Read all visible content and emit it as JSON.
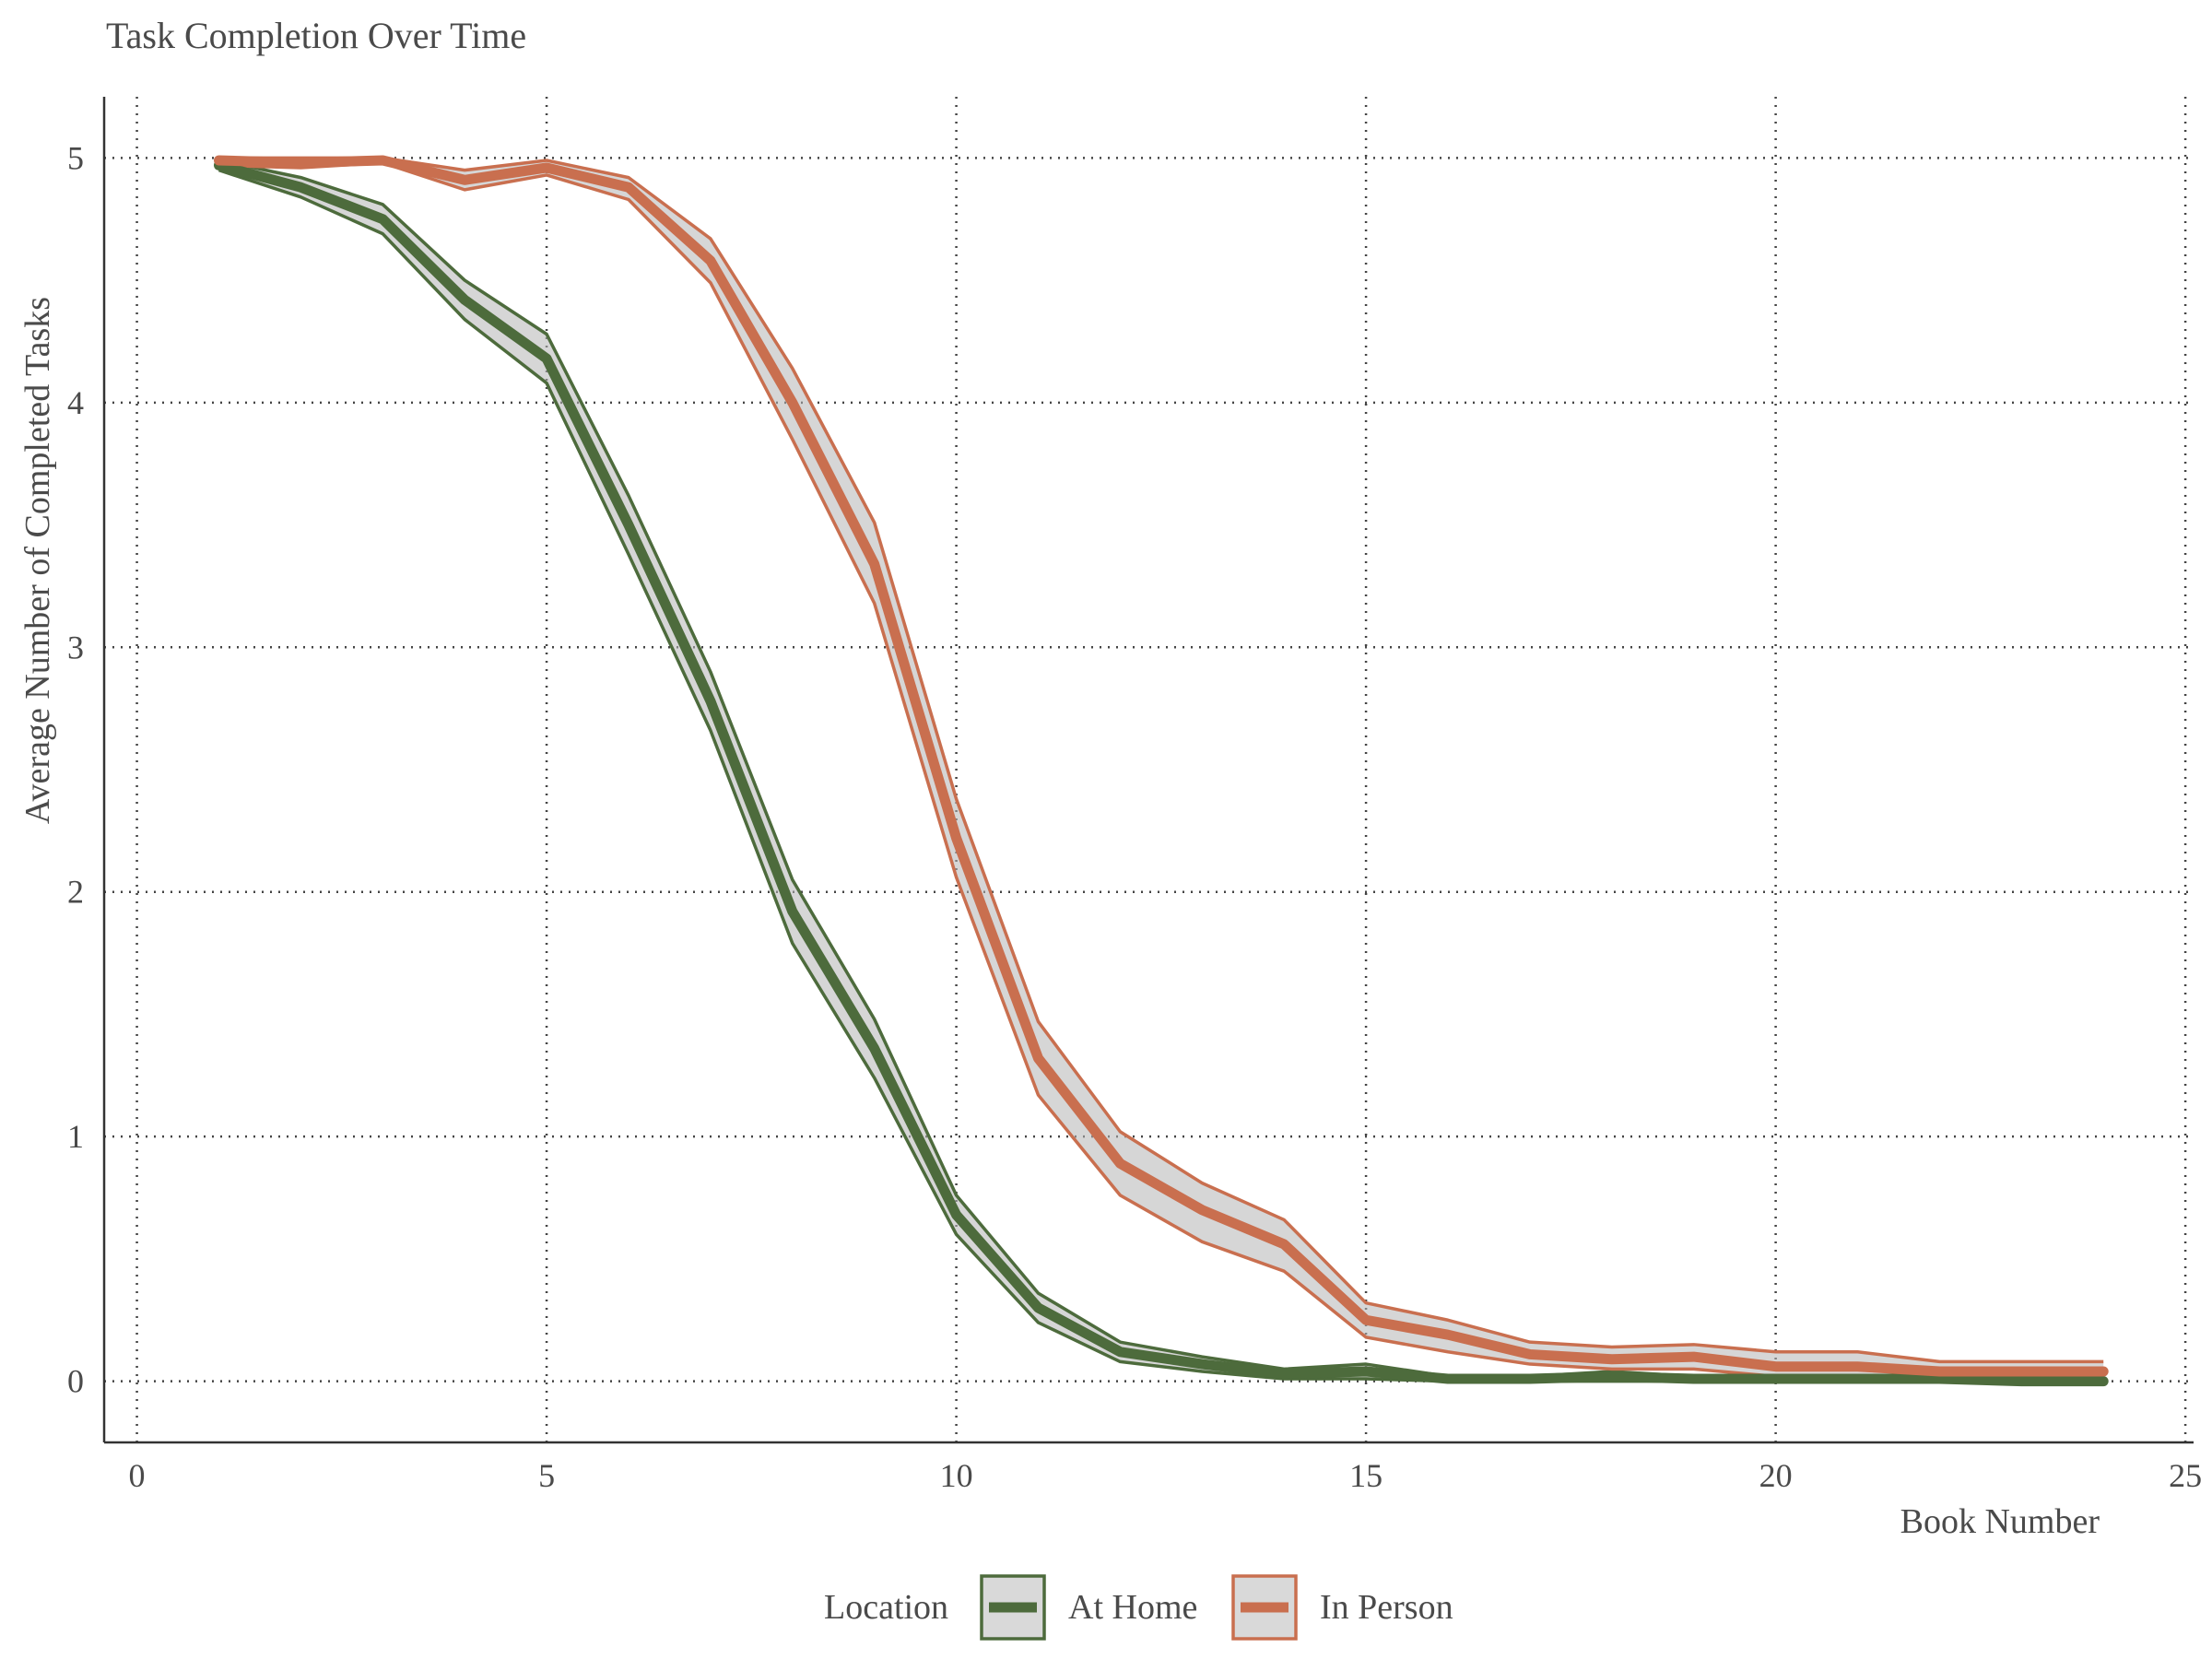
{
  "chart_data": {
    "type": "line",
    "title": "Task Completion Over Time",
    "xlabel": "Book Number",
    "ylabel": "Average Number of Completed Tasks",
    "xlim": [
      -0.4,
      25.1
    ],
    "ylim": [
      -0.25,
      5.25
    ],
    "xticks": [
      0,
      5,
      10,
      15,
      20,
      25
    ],
    "yticks": [
      0,
      1,
      2,
      3,
      4,
      5
    ],
    "grid": true,
    "legend": {
      "title": "Location",
      "position": "bottom"
    },
    "x": [
      1,
      2,
      3,
      4,
      5,
      6,
      7,
      8,
      9,
      10,
      11,
      12,
      13,
      14,
      15,
      16,
      17,
      18,
      19,
      20,
      21,
      22,
      23,
      24
    ],
    "series": [
      {
        "name": "At Home",
        "color": "#4d6b3c",
        "values": [
          4.97,
          4.88,
          4.75,
          4.42,
          4.18,
          3.5,
          2.78,
          1.92,
          1.36,
          0.68,
          0.3,
          0.12,
          0.07,
          0.03,
          0.04,
          0.01,
          0.01,
          0.02,
          0.01,
          0.01,
          0.01,
          0.01,
          0.0,
          0.0
        ],
        "lower": [
          4.95,
          4.84,
          4.69,
          4.34,
          4.08,
          3.38,
          2.66,
          1.79,
          1.24,
          0.6,
          0.24,
          0.08,
          0.04,
          0.01,
          0.01,
          0.0,
          0.0,
          0.0,
          0.0,
          0.0,
          0.0,
          0.0,
          -0.01,
          -0.01
        ],
        "upper": [
          4.99,
          4.92,
          4.81,
          4.5,
          4.28,
          3.62,
          2.9,
          2.05,
          1.48,
          0.76,
          0.36,
          0.16,
          0.1,
          0.05,
          0.07,
          0.02,
          0.02,
          0.04,
          0.02,
          0.02,
          0.02,
          0.02,
          0.01,
          0.01
        ]
      },
      {
        "name": "In Person",
        "color": "#c96f4f",
        "values": [
          4.99,
          4.98,
          4.99,
          4.91,
          4.96,
          4.88,
          4.58,
          4.0,
          3.34,
          2.22,
          1.32,
          0.89,
          0.7,
          0.56,
          0.25,
          0.19,
          0.11,
          0.09,
          0.1,
          0.06,
          0.06,
          0.04,
          0.04,
          0.04
        ],
        "lower": [
          4.97,
          4.96,
          4.98,
          4.87,
          4.93,
          4.83,
          4.49,
          3.85,
          3.18,
          2.06,
          1.17,
          0.76,
          0.57,
          0.45,
          0.18,
          0.12,
          0.07,
          0.05,
          0.05,
          0.02,
          0.02,
          0.01,
          0.01,
          0.01
        ],
        "upper": [
          5.0,
          5.0,
          5.0,
          4.95,
          4.99,
          4.92,
          4.67,
          4.14,
          3.51,
          2.38,
          1.47,
          1.02,
          0.81,
          0.66,
          0.32,
          0.25,
          0.16,
          0.14,
          0.15,
          0.12,
          0.12,
          0.08,
          0.08,
          0.08
        ]
      }
    ]
  }
}
